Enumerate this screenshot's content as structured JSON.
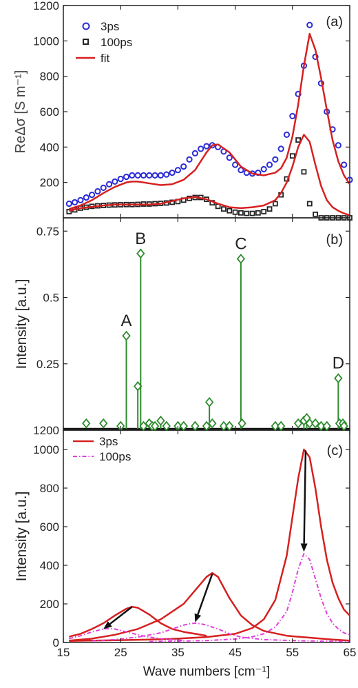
{
  "figure": {
    "x_ticks": [
      "15",
      "25",
      "35",
      "45",
      "55",
      "65"
    ],
    "xlabel": "Wave numbers [cm⁻¹]"
  },
  "chart_data": [
    {
      "type": "scatter",
      "panel_label": "(a)",
      "ylabel": "ReΔσ [S m⁻¹]",
      "xlim": [
        15,
        65
      ],
      "ylim": [
        0,
        1200
      ],
      "y_ticks": [
        "200",
        "400",
        "600",
        "800",
        "1000",
        "1200"
      ],
      "legend": {
        "placement": "top-left",
        "entries": [
          "3ps",
          "100ps",
          "fit"
        ]
      },
      "series": [
        {
          "name": "3ps",
          "marker": "circle",
          "color": "#2b2bd6",
          "x": [
            16,
            17,
            18,
            19,
            20,
            21,
            22,
            23,
            24,
            25,
            26,
            27,
            28,
            29,
            30,
            31,
            32,
            33,
            34,
            35,
            36,
            37,
            38,
            39,
            40,
            41,
            42,
            43,
            44,
            45,
            46,
            47,
            48,
            49,
            50,
            51,
            52,
            53,
            54,
            55,
            56,
            57,
            58,
            59,
            60,
            61,
            62,
            63,
            64,
            65
          ],
          "y": [
            80,
            88,
            100,
            115,
            130,
            150,
            170,
            190,
            205,
            220,
            232,
            240,
            240,
            240,
            240,
            240,
            240,
            245,
            255,
            270,
            290,
            330,
            365,
            390,
            405,
            410,
            400,
            375,
            340,
            300,
            270,
            255,
            250,
            255,
            275,
            300,
            330,
            390,
            470,
            575,
            700,
            860,
            1090,
            910,
            760,
            600,
            500,
            410,
            300,
            215
          ]
        },
        {
          "name": "100ps",
          "marker": "square",
          "color": "#222222",
          "x": [
            16,
            17,
            18,
            19,
            20,
            21,
            22,
            23,
            24,
            25,
            26,
            27,
            28,
            29,
            30,
            31,
            32,
            33,
            34,
            35,
            36,
            37,
            38,
            39,
            40,
            41,
            42,
            43,
            44,
            45,
            46,
            47,
            48,
            49,
            50,
            51,
            52,
            53,
            54,
            55,
            56,
            57,
            58,
            59,
            60,
            61,
            62,
            63,
            64,
            65
          ],
          "y": [
            35,
            45,
            55,
            60,
            65,
            68,
            70,
            72,
            73,
            74,
            75,
            75,
            76,
            78,
            78,
            80,
            82,
            84,
            88,
            92,
            100,
            110,
            115,
            115,
            105,
            85,
            65,
            50,
            40,
            32,
            28,
            25,
            25,
            28,
            35,
            50,
            80,
            130,
            220,
            350,
            440,
            260,
            80,
            20,
            0,
            0,
            0,
            0,
            0,
            0
          ]
        },
        {
          "name": "fit",
          "color": "#d62020",
          "x": [
            16,
            18,
            20,
            22,
            24,
            26,
            27,
            28,
            30,
            32,
            34,
            36,
            38,
            40,
            41,
            42,
            44,
            46,
            48,
            50,
            52,
            53,
            54,
            55,
            56,
            57,
            58,
            59,
            60,
            61,
            62,
            63,
            64,
            65
          ],
          "y": [
            50,
            70,
            100,
            140,
            175,
            200,
            205,
            205,
            195,
            185,
            190,
            215,
            270,
            370,
            410,
            415,
            370,
            290,
            250,
            240,
            255,
            280,
            340,
            460,
            640,
            860,
            1040,
            950,
            790,
            610,
            440,
            320,
            240,
            190
          ]
        },
        {
          "name": "",
          "color": "#d62020",
          "x": [
            16,
            18,
            20,
            22,
            24,
            26,
            28,
            30,
            32,
            34,
            36,
            38,
            40,
            42,
            44,
            46,
            48,
            50,
            52,
            53,
            54,
            55,
            56,
            57,
            58,
            59,
            60,
            61,
            62,
            63,
            64,
            65
          ],
          "y": [
            40,
            55,
            62,
            70,
            75,
            75,
            75,
            75,
            80,
            95,
            110,
            118,
            105,
            80,
            60,
            55,
            60,
            70,
            100,
            140,
            200,
            290,
            400,
            470,
            430,
            300,
            180,
            100,
            60,
            40,
            25,
            15
          ]
        }
      ]
    },
    {
      "type": "stem",
      "panel_label": "(b)",
      "ylabel": "Intensity [a.u.]",
      "xlim": [
        15,
        65
      ],
      "ylim": [
        0,
        0.8
      ],
      "y_ticks": [
        "0.25",
        "0.5",
        "0.75"
      ],
      "baseline_label": "1200",
      "color": "#2e8b2e",
      "points": {
        "x": [
          19,
          22,
          25,
          26,
          28,
          28.5,
          29,
          30,
          30.5,
          31,
          32,
          33,
          35,
          36,
          38,
          40,
          40.5,
          41,
          43,
          44,
          46,
          46.2,
          52,
          53,
          56,
          57,
          57.5,
          58,
          59,
          60,
          61,
          63,
          63.2,
          63.8,
          64
        ],
        "y": [
          0.01,
          0.01,
          0.0,
          0.34,
          0.15,
          0.65,
          0.0,
          0.01,
          0.0,
          0.0,
          0.02,
          0.0,
          0.0,
          0.0,
          0.0,
          0.0,
          0.09,
          0.01,
          0.0,
          0.0,
          0.63,
          0.01,
          0.0,
          0.0,
          0.01,
          0.02,
          0.03,
          0.01,
          0.01,
          0.0,
          0.0,
          0.18,
          0.01,
          0.01,
          0.0
        ]
      },
      "annotations": [
        {
          "text": "A",
          "x": 26,
          "y": 0.34
        },
        {
          "text": "B",
          "x": 28.5,
          "y": 0.65
        },
        {
          "text": "C",
          "x": 46,
          "y": 0.63
        },
        {
          "text": "D",
          "x": 63,
          "y": 0.18
        }
      ]
    },
    {
      "type": "line",
      "panel_label": "(c)",
      "ylabel": "Intensity [a.u.]",
      "xlim": [
        15,
        65
      ],
      "ylim": [
        0,
        1100
      ],
      "y_ticks": [
        "0",
        "200",
        "400",
        "600",
        "800",
        "1000"
      ],
      "legend": {
        "placement": "top-left",
        "entries": [
          "3ps",
          "100ps"
        ]
      },
      "series": [
        {
          "name": "3ps",
          "color": "#d62020",
          "dash": "solid",
          "x": [
            16,
            18,
            20,
            22,
            24,
            26,
            27,
            28,
            30,
            32,
            34,
            36,
            38,
            40
          ],
          "y": [
            30,
            45,
            70,
            100,
            140,
            175,
            185,
            180,
            145,
            100,
            70,
            55,
            45,
            35
          ]
        },
        {
          "name": "",
          "color": "#d62020",
          "dash": "solid",
          "x": [
            16,
            20,
            24,
            28,
            32,
            36,
            38,
            40,
            41,
            42,
            44,
            46,
            48,
            50,
            54,
            58,
            62,
            65
          ],
          "y": [
            10,
            20,
            40,
            70,
            120,
            200,
            270,
            340,
            360,
            340,
            230,
            140,
            90,
            60,
            35,
            25,
            15,
            10
          ]
        },
        {
          "name": "",
          "color": "#d62020",
          "dash": "solid",
          "x": [
            16,
            20,
            25,
            30,
            35,
            40,
            45,
            48,
            50,
            52,
            54,
            55,
            56,
            57,
            58,
            59,
            60,
            61,
            62,
            63,
            64,
            65
          ],
          "y": [
            8,
            10,
            12,
            15,
            20,
            28,
            45,
            75,
            120,
            220,
            450,
            650,
            850,
            1000,
            960,
            800,
            600,
            430,
            310,
            230,
            170,
            140
          ]
        },
        {
          "name": "100ps",
          "color": "#e23fdb",
          "dash": "dashdot",
          "x": [
            16,
            18,
            20,
            22,
            23,
            24,
            26,
            28,
            30,
            32,
            34,
            36
          ],
          "y": [
            20,
            35,
            55,
            70,
            72,
            70,
            55,
            40,
            28,
            20,
            15,
            10
          ]
        },
        {
          "name": "",
          "color": "#e23fdb",
          "dash": "dashdot",
          "x": [
            20,
            24,
            28,
            32,
            34,
            36,
            37,
            38,
            39,
            40,
            42,
            44,
            46,
            50,
            55,
            60,
            65
          ],
          "y": [
            8,
            15,
            28,
            50,
            70,
            90,
            97,
            100,
            97,
            90,
            70,
            45,
            28,
            15,
            10,
            7,
            5
          ]
        },
        {
          "name": "",
          "color": "#e23fdb",
          "dash": "dashdot",
          "x": [
            30,
            40,
            45,
            48,
            50,
            52,
            54,
            55,
            56,
            57,
            58,
            59,
            60,
            61,
            62,
            63,
            64,
            65
          ],
          "y": [
            5,
            10,
            18,
            30,
            45,
            80,
            160,
            260,
            380,
            460,
            430,
            330,
            230,
            150,
            100,
            70,
            50,
            40
          ]
        }
      ],
      "arrows": [
        {
          "from": [
            27,
            185
          ],
          "to": [
            22,
            70
          ]
        },
        {
          "from": [
            41,
            355
          ],
          "to": [
            38,
            105
          ]
        },
        {
          "from": [
            57.3,
            995
          ],
          "to": [
            57,
            470
          ]
        }
      ]
    }
  ]
}
